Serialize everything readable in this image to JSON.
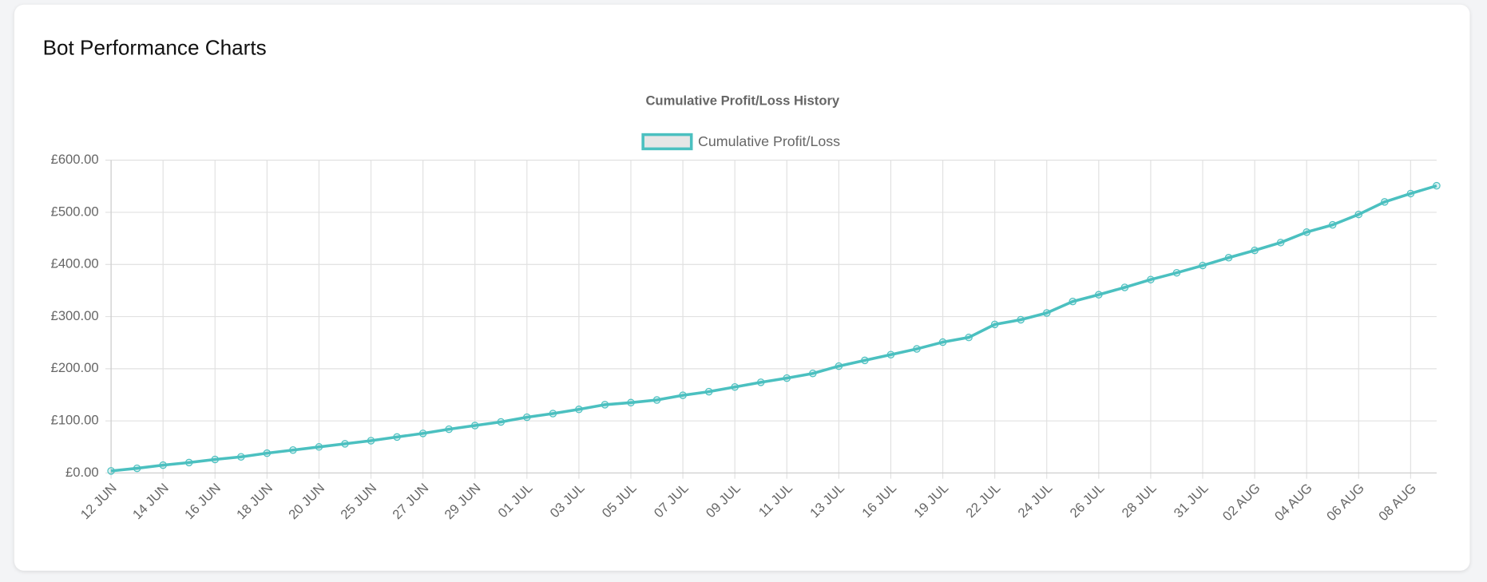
{
  "header": {
    "title": "Bot Performance Charts"
  },
  "chart_data": {
    "type": "line",
    "title": "Cumulative Profit/Loss History",
    "categories": [
      "12 JUN",
      null,
      "14 JUN",
      null,
      "16 JUN",
      null,
      "18 JUN",
      null,
      "20 JUN",
      null,
      "25 JUN",
      null,
      "27 JUN",
      null,
      "29 JUN",
      null,
      "01 JUL",
      null,
      "03 JUL",
      null,
      "05 JUL",
      null,
      "07 JUL",
      null,
      "09 JUL",
      null,
      "11 JUL",
      null,
      "13 JUL",
      null,
      "16 JUL",
      null,
      "19 JUL",
      null,
      "22 JUL",
      null,
      "24 JUL",
      null,
      "26 JUL",
      null,
      "28 JUL",
      null,
      "31 JUL",
      null,
      "02 AUG",
      null,
      "04 AUG",
      null,
      "06 AUG",
      null,
      "08 AUG",
      null
    ],
    "series": [
      {
        "name": "Cumulative Profit/Loss",
        "color": "#4bc0c0",
        "values": [
          4,
          9,
          15,
          20,
          26,
          31,
          38,
          44,
          50,
          56,
          62,
          69,
          76,
          84,
          91,
          98,
          107,
          114,
          122,
          131,
          135,
          140,
          149,
          156,
          165,
          174,
          182,
          191,
          205,
          216,
          227,
          238,
          251,
          260,
          285,
          294,
          307,
          329,
          342,
          356,
          371,
          384,
          398,
          413,
          427,
          442,
          462,
          476,
          496,
          520,
          536,
          551
        ]
      }
    ],
    "ylim": [
      0,
      600
    ],
    "yticks": [
      {
        "value": 0,
        "label": "£0.00"
      },
      {
        "value": 100,
        "label": "£100.00"
      },
      {
        "value": 200,
        "label": "£200.00"
      },
      {
        "value": 300,
        "label": "£300.00"
      },
      {
        "value": 400,
        "label": "£400.00"
      },
      {
        "value": 500,
        "label": "£500.00"
      },
      {
        "value": 600,
        "label": "£600.00"
      }
    ],
    "grid": true,
    "legend": "top"
  }
}
